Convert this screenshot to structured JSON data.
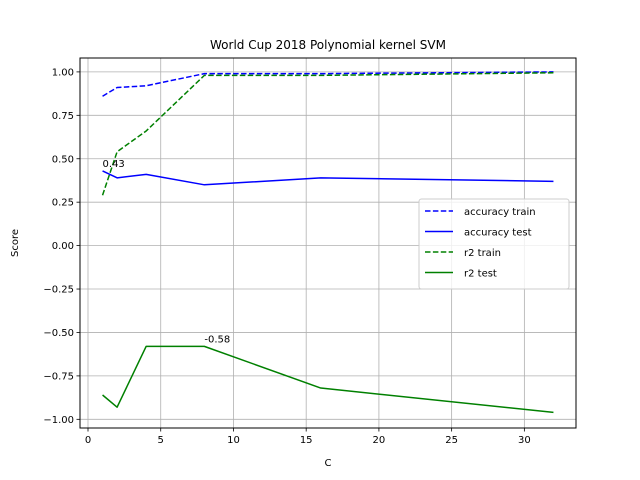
{
  "chart_data": {
    "type": "line",
    "title": "World Cup 2018 Polynomial kernel SVM",
    "xlabel": "C",
    "ylabel": "Score",
    "xlim": [
      -0.55,
      33.55
    ],
    "ylim": [
      -1.05,
      1.08
    ],
    "xticks": [
      0,
      5,
      10,
      15,
      20,
      25,
      30
    ],
    "xtick_labels": [
      "0",
      "5",
      "10",
      "15",
      "20",
      "25",
      "30"
    ],
    "yticks": [
      1.0,
      0.75,
      0.5,
      0.25,
      0.0,
      -0.25,
      -0.5,
      -0.75,
      -1.0
    ],
    "ytick_labels": [
      "1.00",
      "0.75",
      "0.50",
      "0.25",
      "0.00",
      "−0.25",
      "−0.50",
      "−0.75",
      "−1.00"
    ],
    "grid": true,
    "legend_position": "center-right",
    "series": [
      {
        "name": "accuracy train",
        "color": "#0000ff",
        "style": "dashed",
        "x": [
          1,
          2,
          4,
          8,
          16,
          32
        ],
        "y": [
          0.86,
          0.91,
          0.92,
          0.99,
          0.99,
          1.0
        ]
      },
      {
        "name": "accuracy test",
        "color": "#0000ff",
        "style": "solid",
        "x": [
          1,
          2,
          4,
          8,
          16,
          32
        ],
        "y": [
          0.43,
          0.39,
          0.41,
          0.35,
          0.39,
          0.37
        ]
      },
      {
        "name": "r2 train",
        "color": "#008000",
        "style": "dashed",
        "x": [
          1,
          2,
          4,
          8,
          16,
          32
        ],
        "y": [
          0.29,
          0.54,
          0.66,
          0.98,
          0.98,
          0.995
        ]
      },
      {
        "name": "r2 test",
        "color": "#008000",
        "style": "solid",
        "x": [
          1,
          2,
          4,
          8,
          16,
          32
        ],
        "y": [
          -0.86,
          -0.93,
          -0.58,
          -0.58,
          -0.82,
          -0.96
        ]
      }
    ],
    "annotations": [
      {
        "text": "0.43",
        "x": 1,
        "y": 0.43
      },
      {
        "text": "-0.58",
        "x": 8,
        "y": -0.58
      }
    ]
  }
}
